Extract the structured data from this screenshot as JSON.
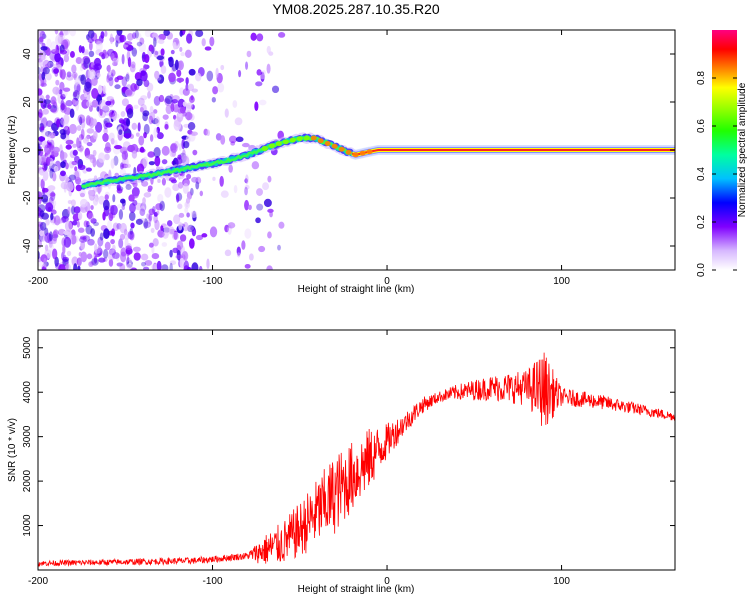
{
  "title": "YM08.2025.287.10.35.R20",
  "chart_data": [
    {
      "type": "heatmap",
      "name": "spectrogram",
      "xlabel": "Height of straight line (km)",
      "ylabel": "Frequency (Hz)",
      "xlim": [
        -200,
        165
      ],
      "ylim": [
        -50,
        50
      ],
      "xticks": [
        -200,
        -100,
        0,
        100
      ],
      "yticks": [
        -40,
        -20,
        0,
        20,
        40
      ],
      "ridge": {
        "x": [
          -175,
          -160,
          -140,
          -125,
          -110,
          -95,
          -80,
          -65,
          -55,
          -48,
          -42,
          -35,
          -28,
          -22,
          -18,
          -12,
          -5,
          0,
          20,
          60,
          100,
          140,
          165
        ],
        "freq": [
          -15,
          -13,
          -11,
          -9,
          -7,
          -5,
          -2,
          2,
          4,
          5,
          5,
          3,
          1,
          -1,
          -2,
          -1,
          0,
          0,
          0,
          0,
          0,
          0,
          0
        ]
      },
      "colorbar": {
        "label": "Normalized spectral amplitude",
        "range": [
          0,
          1
        ],
        "ticks": [
          "0.0",
          "0.2",
          "0.4",
          "0.6",
          "0.8"
        ],
        "tick_values": [
          0.0,
          0.2,
          0.4,
          0.6,
          0.8
        ]
      }
    },
    {
      "type": "line",
      "name": "snr",
      "xlabel": "Height of straight line (km)",
      "ylabel": "SNR (10 * v/v)",
      "xlim": [
        -200,
        165
      ],
      "ylim": [
        0,
        5400
      ],
      "xticks": [
        -200,
        -100,
        0,
        100
      ],
      "yticks": [
        1000,
        2000,
        3000,
        4000,
        5000
      ],
      "color": "#ff0000",
      "envelope": {
        "x": [
          -200,
          -150,
          -110,
          -100,
          -90,
          -80,
          -75,
          -70,
          -60,
          -50,
          -40,
          -30,
          -20,
          -10,
          0,
          10,
          20,
          30,
          40,
          50,
          60,
          70,
          80,
          90,
          100,
          120,
          140,
          165
        ],
        "y": [
          150,
          180,
          210,
          240,
          280,
          320,
          380,
          450,
          600,
          900,
          1300,
          1700,
          2100,
          2500,
          2900,
          3300,
          3700,
          3900,
          4000,
          4050,
          4100,
          4100,
          4100,
          4050,
          3900,
          3800,
          3650,
          3450
        ]
      },
      "noise": {
        "x": [
          -200,
          -80,
          -70,
          -30,
          -10,
          0,
          10,
          30,
          80,
          90,
          100,
          165
        ],
        "amp": [
          60,
          80,
          350,
          900,
          700,
          400,
          250,
          120,
          400,
          900,
          200,
          100
        ]
      }
    }
  ]
}
